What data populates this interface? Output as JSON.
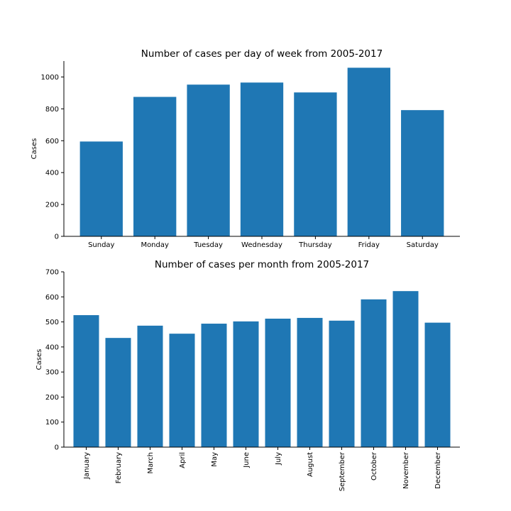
{
  "chart_data": [
    {
      "type": "bar",
      "title": "Number of cases per day of week from 2005-2017",
      "xlabel": "",
      "ylabel": "Cases",
      "categories": [
        "Sunday",
        "Monday",
        "Tuesday",
        "Wednesday",
        "Thursday",
        "Friday",
        "Saturday"
      ],
      "values": [
        595,
        875,
        952,
        965,
        903,
        1058,
        792
      ],
      "ylim": [
        0,
        1100
      ],
      "yticks": [
        0,
        200,
        400,
        600,
        800,
        1000
      ],
      "xtick_rotation": 0,
      "grid": false,
      "color": "#1f77b4"
    },
    {
      "type": "bar",
      "title": "Number of cases per month from 2005-2017",
      "xlabel": "",
      "ylabel": "Cases",
      "categories": [
        "January",
        "February",
        "March",
        "April",
        "May",
        "June",
        "July",
        "August",
        "September",
        "October",
        "November",
        "December"
      ],
      "values": [
        527,
        436,
        485,
        453,
        493,
        502,
        513,
        516,
        505,
        590,
        623,
        497
      ],
      "ylim": [
        0,
        700
      ],
      "yticks": [
        0,
        100,
        200,
        300,
        400,
        500,
        600,
        700
      ],
      "xtick_rotation": 90,
      "grid": false,
      "color": "#1f77b4"
    }
  ]
}
